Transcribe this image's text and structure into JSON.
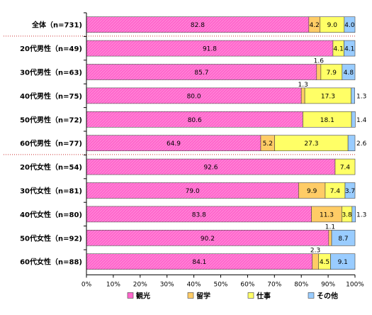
{
  "chart_data": {
    "type": "bar",
    "orientation": "horizontal",
    "stacked": true,
    "categories": [
      "全体（n=731)",
      "20代男性（n=49)",
      "30代男性（n=63)",
      "40代男性（n=75)",
      "50代男性（n=72)",
      "60代男性（n=77)",
      "20代女性（n=54)",
      "30代女性（n=81)",
      "40代女性（n=80)",
      "50代女性（n=92)",
      "60代女性（n=88)"
    ],
    "series": [
      {
        "name": "観光",
        "color": "#ff66cc",
        "values": [
          82.8,
          91.8,
          85.7,
          80.0,
          80.6,
          64.9,
          92.6,
          79.0,
          83.8,
          90.2,
          84.1
        ],
        "labels": [
          "82.8",
          "91.8",
          "85.7",
          "80.0",
          "80.6",
          "64.9",
          "92.6",
          "79.0",
          "83.8",
          "90.2",
          "84.1"
        ]
      },
      {
        "name": "留学",
        "color": "#ffcc66",
        "values": [
          4.2,
          0,
          1.6,
          1.3,
          0,
          5.2,
          0,
          9.9,
          11.3,
          1.1,
          2.3
        ],
        "labels": [
          "4.2",
          "",
          "1.6",
          "1.3",
          "",
          "5.2",
          "",
          "9.9",
          "11.3",
          "1.1",
          "2.3"
        ]
      },
      {
        "name": "仕事",
        "color": "#ffff66",
        "values": [
          9.0,
          4.1,
          7.9,
          17.3,
          18.1,
          27.3,
          7.4,
          7.4,
          3.8,
          0,
          4.5
        ],
        "labels": [
          "9.0",
          "4.1",
          "7.9",
          "17.3",
          "18.1",
          "27.3",
          "7.4",
          "7.4",
          "3.8",
          "",
          "4.5"
        ]
      },
      {
        "name": "その他",
        "color": "#99ccff",
        "values": [
          4.0,
          4.1,
          4.8,
          1.3,
          1.4,
          2.6,
          0,
          3.7,
          1.3,
          8.7,
          9.1
        ],
        "labels": [
          "4.0",
          "4.1",
          "4.8",
          "1.3",
          "1.4",
          "2.6",
          "",
          "3.7",
          "1.3",
          "8.7",
          "9.1"
        ]
      }
    ],
    "x_ticks": [
      "0%",
      "10%",
      "20%",
      "30%",
      "40%",
      "50%",
      "60%",
      "70%",
      "80%",
      "90%",
      "100%"
    ],
    "xlim": [
      0,
      100
    ],
    "legend_position": "bottom",
    "grid": false,
    "separator_after": [
      0,
      5
    ]
  }
}
